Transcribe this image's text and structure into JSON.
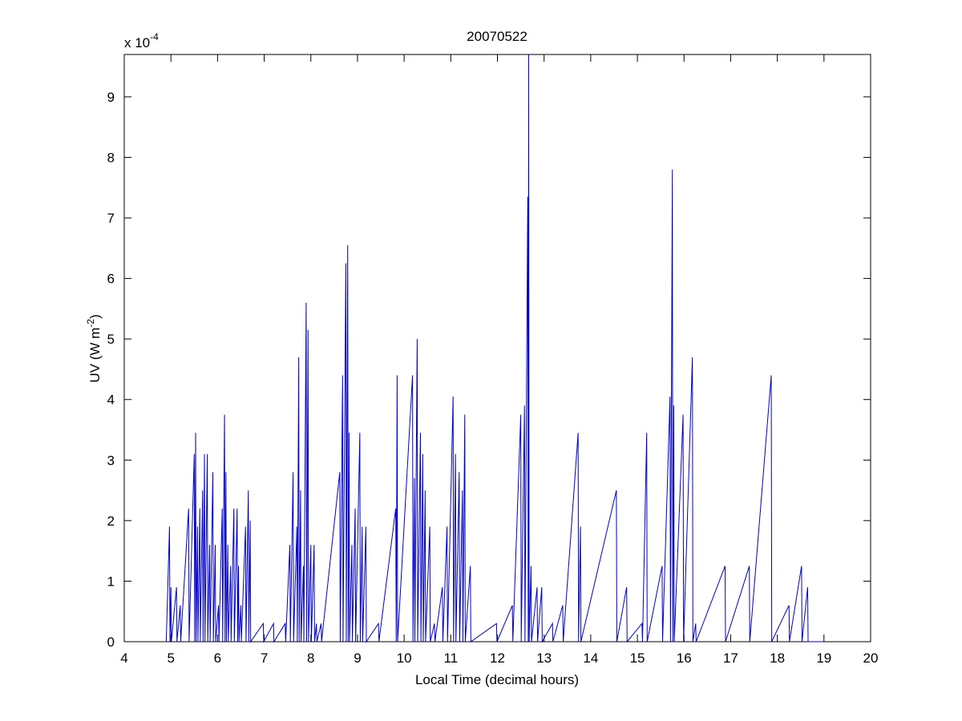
{
  "chart_data": {
    "type": "line",
    "title": "20070522",
    "x_label": "Local Time (decimal hours)",
    "y_label": "UV (W m",
    "y_label_sup": "-2",
    "y_label_end": ")",
    "y_scale_label": "x 10",
    "y_scale_exponent": "-4",
    "xlim": [
      4,
      20
    ],
    "xticks": [
      4,
      5,
      6,
      7,
      8,
      9,
      10,
      11,
      12,
      13,
      14,
      15,
      16,
      17,
      18,
      19,
      20
    ],
    "ylim": [
      0,
      9.7
    ],
    "yticks": [
      0,
      1,
      2,
      3,
      4,
      5,
      6,
      7,
      8,
      9
    ],
    "grid": false,
    "series": [
      {
        "color": "#0000cc",
        "x": [
          4.9,
          4.97,
          4.98,
          5.0,
          5.01,
          5.12,
          5.13,
          5.2,
          5.21,
          5.38,
          5.39,
          5.5,
          5.51,
          5.53,
          5.54,
          5.57,
          5.58,
          5.62,
          5.63,
          5.68,
          5.69,
          5.72,
          5.73,
          5.78,
          5.79,
          5.83,
          5.84,
          5.9,
          5.91,
          5.95,
          5.96,
          6.02,
          6.03,
          6.1,
          6.11,
          6.15,
          6.16,
          6.18,
          6.19,
          6.22,
          6.23,
          6.28,
          6.29,
          6.35,
          6.36,
          6.42,
          6.43,
          6.45,
          6.46,
          6.5,
          6.51,
          6.6,
          6.61,
          6.66,
          6.67,
          6.7,
          6.71,
          6.98,
          6.99,
          7.2,
          7.21,
          7.45,
          7.46,
          7.55,
          7.56,
          7.62,
          7.63,
          7.7,
          7.71,
          7.74,
          7.75,
          7.78,
          7.79,
          7.84,
          7.85,
          7.9,
          7.91,
          7.94,
          7.95,
          8.0,
          8.01,
          8.07,
          8.08,
          8.12,
          8.13,
          8.22,
          8.23,
          8.62,
          8.63,
          8.68,
          8.69,
          8.75,
          8.76,
          8.79,
          8.8,
          8.82,
          8.83,
          8.88,
          8.89,
          8.95,
          8.96,
          9.05,
          9.06,
          9.1,
          9.11,
          9.18,
          9.19,
          9.45,
          9.46,
          9.82,
          9.83,
          9.85,
          9.86,
          10.18,
          10.19,
          10.22,
          10.23,
          10.28,
          10.29,
          10.35,
          10.36,
          10.4,
          10.41,
          10.45,
          10.46,
          10.55,
          10.56,
          10.65,
          10.66,
          10.82,
          10.83,
          10.92,
          10.93,
          11.05,
          11.06,
          11.1,
          11.11,
          11.18,
          11.19,
          11.25,
          11.26,
          11.3,
          11.31,
          11.42,
          11.43,
          11.98,
          11.99,
          12.32,
          12.33,
          12.5,
          12.51,
          12.58,
          12.59,
          12.65,
          12.66,
          12.67,
          12.68,
          12.72,
          12.73,
          12.85,
          12.86,
          12.95,
          12.96,
          13.18,
          13.19,
          13.4,
          13.41,
          13.73,
          13.74,
          13.78,
          13.79,
          14.55,
          14.56,
          14.77,
          14.78,
          15.1,
          15.11,
          15.2,
          15.21,
          15.53,
          15.54,
          15.7,
          15.71,
          15.75,
          15.76,
          15.78,
          15.79,
          15.98,
          15.99,
          16.18,
          16.19,
          16.25,
          16.26,
          16.88,
          16.89,
          17.4,
          17.41,
          17.87,
          17.88,
          18.25,
          18.26,
          18.52,
          18.53,
          18.65,
          18.66,
          19.0
        ],
        "values": [
          0,
          1.9,
          0,
          0.9,
          0,
          0.9,
          0,
          0.6,
          0,
          2.2,
          0,
          3.1,
          0,
          3.45,
          0,
          1.9,
          0,
          2.2,
          0,
          2.5,
          0,
          3.1,
          0,
          3.1,
          0,
          1.6,
          0,
          2.8,
          0,
          1.6,
          0,
          0.6,
          0,
          2.2,
          0,
          3.75,
          0,
          2.8,
          0,
          1.6,
          0,
          1.25,
          0,
          2.2,
          0,
          2.2,
          0,
          1.25,
          0,
          0.6,
          0,
          1.9,
          0,
          2.5,
          0,
          2.0,
          0,
          0.3,
          0,
          0.3,
          0,
          0.3,
          0,
          1.6,
          0,
          2.8,
          0,
          1.9,
          0,
          4.7,
          0,
          2.5,
          0,
          1.25,
          0,
          5.6,
          0,
          5.15,
          0,
          1.6,
          0,
          1.6,
          0,
          0.3,
          0,
          0.3,
          0,
          2.8,
          0,
          4.4,
          0,
          6.25,
          0,
          6.55,
          0,
          3.45,
          0,
          1.6,
          0,
          2.2,
          0,
          3.45,
          0,
          1.9,
          0,
          1.9,
          0,
          0.3,
          0,
          2.2,
          0,
          4.4,
          0,
          4.4,
          0,
          2.7,
          0,
          5.0,
          0,
          3.45,
          0,
          3.1,
          0,
          2.5,
          0,
          1.9,
          0,
          0.3,
          0,
          0.9,
          0,
          1.9,
          0,
          4.05,
          0,
          3.1,
          0,
          2.8,
          0,
          2.5,
          0,
          3.75,
          0,
          1.25,
          0,
          0.3,
          0,
          0.6,
          0,
          3.75,
          0,
          3.9,
          0,
          7.35,
          0,
          9.7,
          0,
          1.25,
          0,
          0.9,
          0,
          0.9,
          0,
          0.3,
          0,
          0.6,
          0,
          3.45,
          0,
          1.9,
          0,
          2.5,
          0,
          0.9,
          0,
          0.3,
          0,
          3.45,
          0,
          1.25,
          0,
          4.05,
          0,
          7.8,
          0,
          3.9,
          0,
          3.75,
          0,
          4.7,
          0,
          0.3,
          0,
          1.25,
          0,
          1.25,
          0,
          4.4,
          0,
          0.6,
          0,
          1.25,
          0,
          0.9,
          0,
          0
        ]
      }
    ]
  }
}
